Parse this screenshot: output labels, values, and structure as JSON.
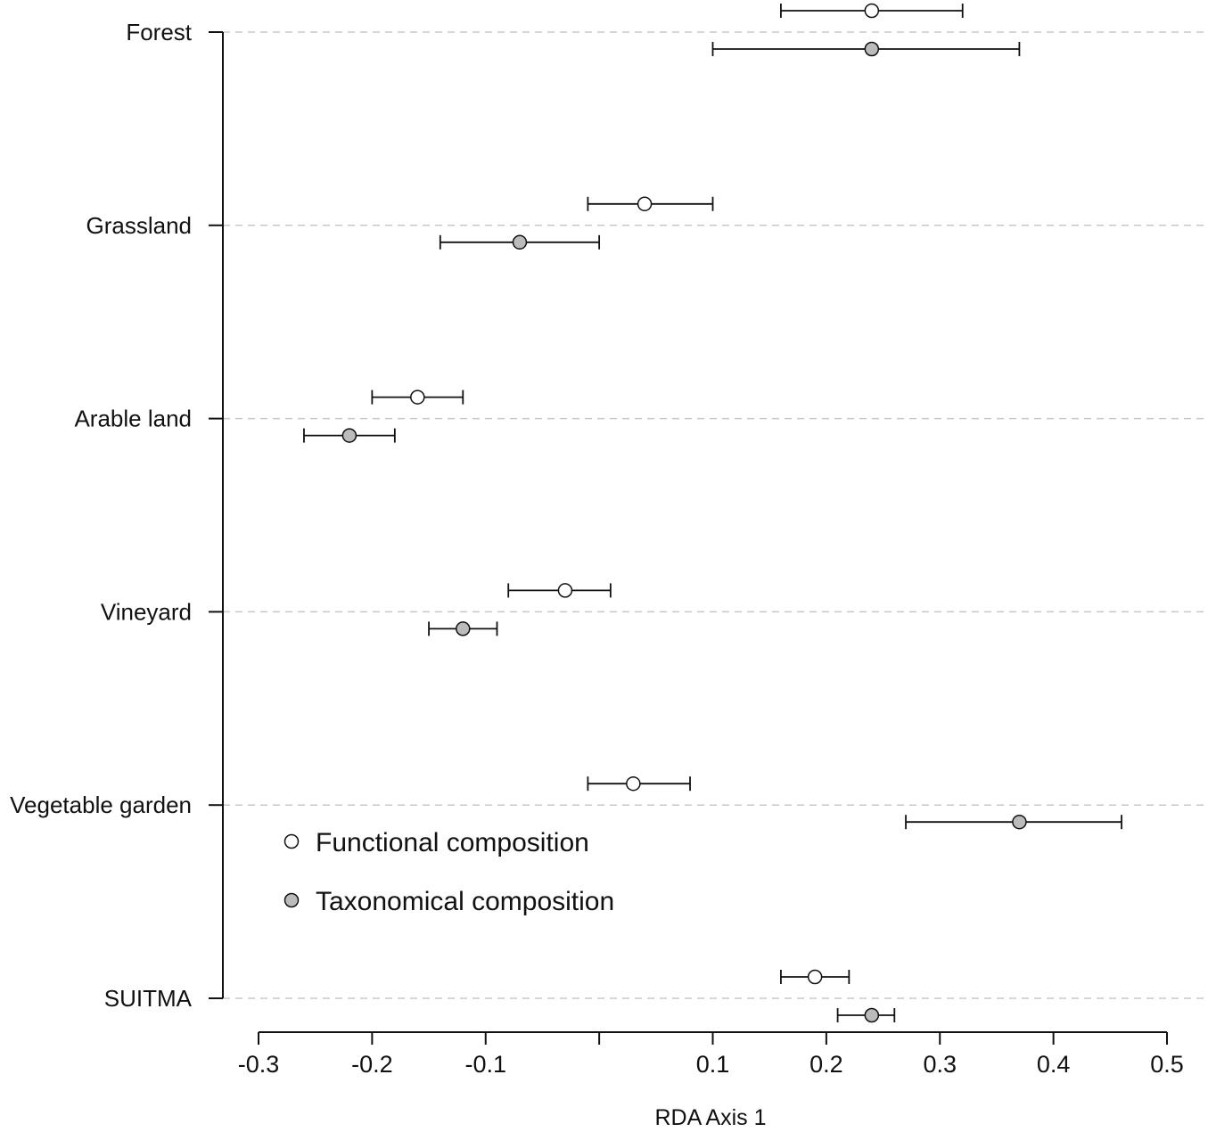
{
  "chart_data": {
    "type": "scatter",
    "subtype": "dot-plot with horizontal error bars",
    "title": "",
    "xlabel": "RDA Axis 1",
    "ylabel": "",
    "xlim": [
      -0.3,
      0.5
    ],
    "x_tick_values": [
      -0.3,
      -0.2,
      -0.1,
      0.0,
      0.1,
      0.2,
      0.3,
      0.4,
      0.5
    ],
    "x_tick_labels": [
      "-0.3",
      "-0.2",
      "-0.1",
      "",
      "0.1",
      "0.2",
      "0.3",
      "0.4",
      "0.5"
    ],
    "grid": "horizontal dashed lines at categories",
    "categories": [
      "Forest",
      "Grassland",
      "Arable land",
      "Vineyard",
      "Vegetable garden",
      "SUITMA"
    ],
    "series": [
      {
        "name": "Functional composition",
        "marker_fill": "#ffffff",
        "values": [
          0.24,
          0.04,
          -0.16,
          -0.03,
          0.03,
          0.19
        ],
        "lower": [
          0.16,
          -0.01,
          -0.2,
          -0.08,
          -0.01,
          0.16
        ],
        "upper": [
          0.32,
          0.1,
          -0.12,
          0.01,
          0.08,
          0.22
        ]
      },
      {
        "name": "Taxonomical composition",
        "marker_fill": "#bbbbbb",
        "values": [
          0.24,
          -0.07,
          -0.22,
          -0.12,
          0.37,
          0.24
        ],
        "lower": [
          0.1,
          -0.14,
          -0.26,
          -0.15,
          0.27,
          0.21
        ],
        "upper": [
          0.37,
          0.0,
          -0.18,
          -0.09,
          0.46,
          0.26
        ]
      }
    ],
    "legend": {
      "position": "lower-left",
      "entries": [
        "Functional composition",
        "Taxonomical composition"
      ]
    }
  }
}
